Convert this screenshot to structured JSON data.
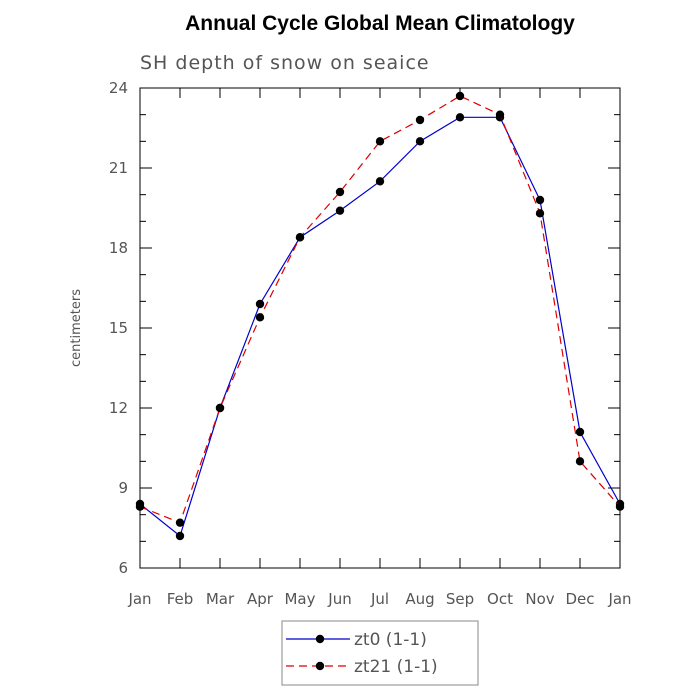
{
  "chart_data": {
    "type": "line",
    "title": "Annual Cycle Global Mean Climatology",
    "subtitle": "SH depth of snow on seaice",
    "xlabel": "",
    "ylabel": "centimeters",
    "categories": [
      "Jan",
      "Feb",
      "Mar",
      "Apr",
      "May",
      "Jun",
      "Jul",
      "Aug",
      "Sep",
      "Oct",
      "Nov",
      "Dec",
      "Jan"
    ],
    "ylim": [
      6,
      24
    ],
    "yticks": [
      6,
      9,
      12,
      15,
      18,
      21,
      24
    ],
    "legend_position": "bottom",
    "series": [
      {
        "name": "zt0 (1-1)",
        "color": "#0000cc",
        "dash": "solid",
        "values": [
          8.4,
          7.2,
          12.0,
          15.9,
          18.4,
          19.4,
          20.5,
          22.0,
          22.9,
          22.9,
          19.8,
          11.1,
          8.4
        ]
      },
      {
        "name": "zt21 (1-1)",
        "color": "#dd0000",
        "dash": "dashed",
        "values": [
          8.3,
          7.7,
          12.0,
          15.4,
          18.4,
          20.1,
          22.0,
          22.8,
          23.7,
          23.0,
          19.3,
          10.0,
          8.3
        ]
      }
    ]
  }
}
